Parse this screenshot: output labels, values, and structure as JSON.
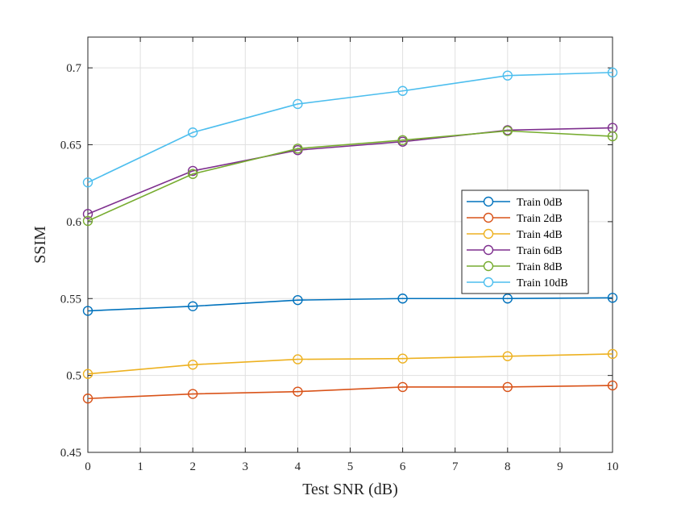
{
  "chart_data": {
    "type": "line",
    "title": "",
    "xlabel": "Test SNR (dB)",
    "ylabel": "SSIM",
    "xlim": [
      0,
      10
    ],
    "ylim": [
      0.45,
      0.72
    ],
    "xticks": [
      0,
      1,
      2,
      3,
      4,
      5,
      6,
      7,
      8,
      9,
      10
    ],
    "xtick_labels": [
      "0",
      "1",
      "2",
      "3",
      "4",
      "5",
      "6",
      "7",
      "8",
      "9",
      "10"
    ],
    "yticks": [
      0.45,
      0.5,
      0.55,
      0.6,
      0.65,
      0.7
    ],
    "ytick_labels": [
      "0.45",
      "0.5",
      "0.55",
      "0.6",
      "0.65",
      "0.7"
    ],
    "grid": true,
    "legend_position": "center-right",
    "marker": "circle-open",
    "x": [
      0,
      2,
      4,
      6,
      8,
      10
    ],
    "series": [
      {
        "name": "Train 0dB",
        "color": "#0072BD",
        "values": [
          0.542,
          0.545,
          0.549,
          0.55,
          0.55,
          0.5505
        ]
      },
      {
        "name": "Train 2dB",
        "color": "#D95319",
        "values": [
          0.485,
          0.488,
          0.4895,
          0.4925,
          0.4925,
          0.4935
        ]
      },
      {
        "name": "Train 4dB",
        "color": "#EDB120",
        "values": [
          0.501,
          0.507,
          0.5105,
          0.511,
          0.5125,
          0.514
        ]
      },
      {
        "name": "Train 6dB",
        "color": "#7E2F8E",
        "values": [
          0.605,
          0.633,
          0.6465,
          0.652,
          0.6595,
          0.661
        ]
      },
      {
        "name": "Train 8dB",
        "color": "#77AC30",
        "values": [
          0.6005,
          0.631,
          0.6475,
          0.653,
          0.659,
          0.6555
        ]
      },
      {
        "name": "Train 10dB",
        "color": "#4DBEEE",
        "values": [
          0.6255,
          0.658,
          0.6765,
          0.685,
          0.695,
          0.697
        ]
      }
    ]
  }
}
